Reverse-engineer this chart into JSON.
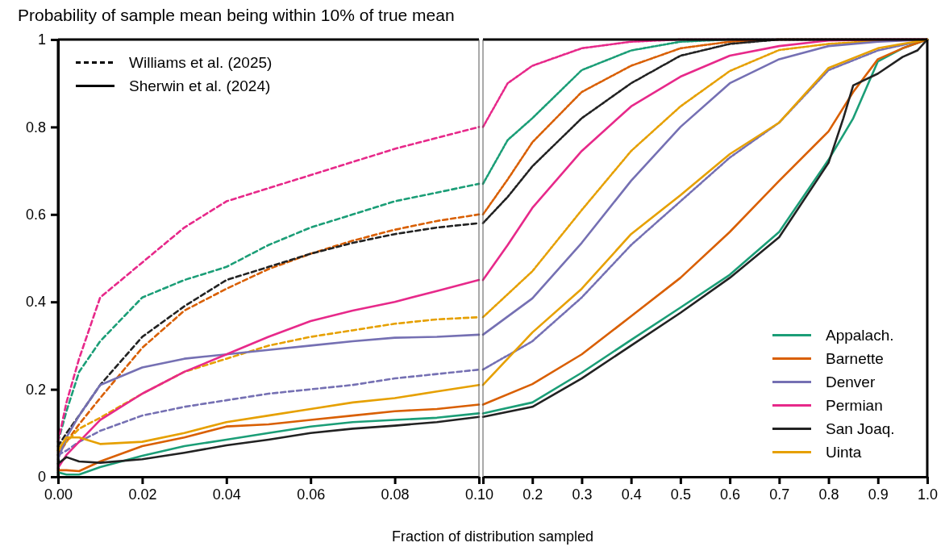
{
  "chart_data": [
    {
      "type": "line",
      "title": "Probability of sample mean being within 10% of true mean",
      "xlabel": "Fraction of distribution sampled",
      "legend": "top left",
      "annotations": [
        "Williams et al. (2025)",
        "Sherwin et al. (2024)"
      ],
      "x": [
        0,
        0.002,
        0.005,
        0.01,
        0.02,
        0.03,
        0.04,
        0.05,
        0.06,
        0.07,
        0.08,
        0.09,
        0.1
      ],
      "xlim": [
        0,
        0.1
      ],
      "xticks": [
        {
          "value": 0,
          "label": "0.00"
        },
        {
          "value": 0.02,
          "label": "0.02"
        },
        {
          "value": 0.04,
          "label": "0.04"
        },
        {
          "value": 0.06,
          "label": "0.06"
        },
        {
          "value": 0.08,
          "label": "0.08"
        },
        {
          "value": 0.1,
          "label": "0.10"
        }
      ],
      "ylim": [
        0,
        1
      ],
      "yticks": [
        0,
        0.2,
        0.4,
        0.6,
        0.8,
        1
      ],
      "series": [
        {
          "color": "#1b9e77",
          "line_style": "dashed",
          "values": [
            0.08,
            0.15,
            0.24,
            0.31,
            0.41,
            0.45,
            0.48,
            0.53,
            0.57,
            0.6,
            0.63,
            0.65,
            0.67
          ]
        },
        {
          "color": "#d95f02",
          "line_style": "dashed",
          "values": [
            0.05,
            0.08,
            0.12,
            0.18,
            0.295,
            0.38,
            0.43,
            0.475,
            0.51,
            0.54,
            0.565,
            0.585,
            0.6
          ]
        },
        {
          "color": "#7570b3",
          "line_style": "dashed",
          "values": [
            0.05,
            0.06,
            0.08,
            0.105,
            0.14,
            0.16,
            0.175,
            0.19,
            0.2,
            0.21,
            0.225,
            0.235,
            0.245
          ]
        },
        {
          "color": "#e7298a",
          "line_style": "dashed",
          "values": [
            0.08,
            0.17,
            0.27,
            0.41,
            0.49,
            0.57,
            0.63,
            0.66,
            0.69,
            0.72,
            0.75,
            0.775,
            0.8
          ]
        },
        {
          "color": "#222222",
          "line_style": "dashed",
          "values": [
            0.07,
            0.1,
            0.14,
            0.21,
            0.32,
            0.39,
            0.45,
            0.48,
            0.51,
            0.535,
            0.555,
            0.57,
            0.58
          ]
        },
        {
          "color": "#e6a000",
          "line_style": "dashed",
          "values": [
            0.06,
            0.08,
            0.11,
            0.135,
            0.19,
            0.24,
            0.27,
            0.3,
            0.32,
            0.335,
            0.35,
            0.36,
            0.365
          ]
        },
        {
          "color": "#1b9e77",
          "line_style": "solid",
          "values": [
            0.01,
            0.005,
            0.005,
            0.022,
            0.048,
            0.07,
            0.085,
            0.1,
            0.115,
            0.125,
            0.13,
            0.135,
            0.145
          ]
        },
        {
          "color": "#d95f02",
          "line_style": "solid",
          "values": [
            0.015,
            0.015,
            0.013,
            0.035,
            0.07,
            0.09,
            0.115,
            0.12,
            0.13,
            0.14,
            0.15,
            0.155,
            0.165
          ]
        },
        {
          "color": "#7570b3",
          "line_style": "solid",
          "values": [
            0.04,
            0.09,
            0.14,
            0.21,
            0.25,
            0.27,
            0.28,
            0.29,
            0.3,
            0.31,
            0.318,
            0.32,
            0.325
          ]
        },
        {
          "color": "#e7298a",
          "line_style": "solid",
          "values": [
            0.02,
            0.05,
            0.08,
            0.13,
            0.19,
            0.24,
            0.28,
            0.32,
            0.356,
            0.38,
            0.4,
            0.425,
            0.45
          ]
        },
        {
          "color": "#222222",
          "line_style": "solid",
          "values": [
            0.03,
            0.045,
            0.035,
            0.032,
            0.04,
            0.055,
            0.072,
            0.085,
            0.1,
            0.11,
            0.117,
            0.125,
            0.137
          ]
        },
        {
          "color": "#e6a000",
          "line_style": "solid",
          "values": [
            0.06,
            0.09,
            0.09,
            0.075,
            0.08,
            0.1,
            0.125,
            0.14,
            0.155,
            0.17,
            0.18,
            0.195,
            0.21
          ]
        }
      ]
    },
    {
      "type": "line",
      "legend": "bottom right",
      "tick_labels": "x",
      "xlim": [
        0.1,
        1
      ],
      "xticks": [
        {
          "value": 0.1,
          "label": null
        },
        0.2,
        0.3,
        0.4,
        0.5,
        0.6,
        0.7,
        0.8,
        0.9,
        {
          "value": 1,
          "label": "1.0"
        }
      ],
      "ylim": [
        0,
        1
      ],
      "yticks": [
        0,
        0.2,
        0.4,
        0.6,
        0.8,
        1
      ],
      "series": [
        {
          "color": "#1b9e77",
          "line_style": "dashed",
          "x": [
            0.1,
            0.15,
            0.2,
            0.3,
            0.4,
            0.5,
            0.6,
            1
          ],
          "values": [
            0.67,
            0.77,
            0.82,
            0.93,
            0.975,
            0.995,
            1,
            1
          ]
        },
        {
          "color": "#d95f02",
          "line_style": "dashed",
          "x": [
            0.1,
            0.15,
            0.2,
            0.3,
            0.4,
            0.5,
            0.6,
            0.7,
            1
          ],
          "values": [
            0.6,
            0.68,
            0.765,
            0.88,
            0.94,
            0.98,
            0.995,
            1,
            1
          ]
        },
        {
          "color": "#7570b3",
          "line_style": "dashed",
          "x": [
            0.1,
            0.2,
            0.3,
            0.4,
            0.5,
            0.6,
            0.7,
            0.8,
            0.9,
            1
          ],
          "values": [
            0.245,
            0.31,
            0.41,
            0.53,
            0.63,
            0.73,
            0.81,
            0.93,
            0.975,
            1
          ]
        },
        {
          "color": "#e7298a",
          "line_style": "dashed",
          "x": [
            0.1,
            0.15,
            0.2,
            0.3,
            0.4,
            0.5,
            1
          ],
          "values": [
            0.8,
            0.9,
            0.94,
            0.98,
            0.995,
            1,
            1
          ]
        },
        {
          "color": "#222222",
          "line_style": "dashed",
          "x": [
            0.1,
            0.15,
            0.2,
            0.3,
            0.4,
            0.5,
            0.6,
            0.7,
            1
          ],
          "values": [
            0.58,
            0.64,
            0.71,
            0.82,
            0.9,
            0.963,
            0.99,
            1,
            1
          ]
        },
        {
          "color": "#e6a000",
          "line_style": "dashed",
          "x": [
            0.1,
            0.2,
            0.3,
            0.4,
            0.5,
            0.6,
            0.7,
            0.8,
            0.9,
            1
          ],
          "values": [
            0.365,
            0.47,
            0.61,
            0.745,
            0.847,
            0.928,
            0.976,
            0.99,
            0.997,
            1
          ]
        },
        {
          "name": "Appalach.",
          "color": "#1b9e77",
          "line_style": "solid",
          "x": [
            0.1,
            0.2,
            0.3,
            0.4,
            0.5,
            0.6,
            0.7,
            0.8,
            0.85,
            0.9,
            0.95,
            1
          ],
          "values": [
            0.145,
            0.17,
            0.238,
            0.313,
            0.387,
            0.462,
            0.56,
            0.725,
            0.82,
            0.95,
            0.98,
            1
          ]
        },
        {
          "name": "Barnette",
          "color": "#d95f02",
          "line_style": "solid",
          "x": [
            0.1,
            0.2,
            0.3,
            0.4,
            0.5,
            0.6,
            0.7,
            0.8,
            0.85,
            0.9,
            0.95,
            1
          ],
          "values": [
            0.165,
            0.212,
            0.28,
            0.367,
            0.455,
            0.56,
            0.677,
            0.79,
            0.88,
            0.955,
            0.98,
            1
          ]
        },
        {
          "name": "Denver",
          "color": "#7570b3",
          "line_style": "solid",
          "x": [
            0.1,
            0.2,
            0.3,
            0.4,
            0.5,
            0.6,
            0.7,
            0.8,
            0.9,
            1
          ],
          "values": [
            0.325,
            0.408,
            0.535,
            0.677,
            0.8,
            0.9,
            0.955,
            0.985,
            0.995,
            1
          ]
        },
        {
          "name": "Permian",
          "color": "#e7298a",
          "line_style": "solid",
          "x": [
            0.1,
            0.15,
            0.2,
            0.3,
            0.4,
            0.5,
            0.6,
            0.7,
            0.8,
            0.9,
            1
          ],
          "values": [
            0.45,
            0.53,
            0.615,
            0.745,
            0.847,
            0.915,
            0.963,
            0.985,
            0.998,
            1,
            1
          ]
        },
        {
          "name": "San Joaq.",
          "color": "#222222",
          "line_style": "solid",
          "x": [
            0.1,
            0.2,
            0.3,
            0.4,
            0.5,
            0.6,
            0.7,
            0.8,
            0.83,
            0.85,
            0.9,
            0.95,
            0.98,
            1
          ],
          "values": [
            0.137,
            0.16,
            0.225,
            0.3,
            0.375,
            0.455,
            0.548,
            0.718,
            0.82,
            0.895,
            0.922,
            0.96,
            0.975,
            1
          ]
        },
        {
          "name": "Uinta",
          "color": "#e6a000",
          "line_style": "solid",
          "x": [
            0.1,
            0.2,
            0.3,
            0.4,
            0.5,
            0.6,
            0.7,
            0.8,
            0.9,
            1
          ],
          "values": [
            0.21,
            0.33,
            0.43,
            0.555,
            0.644,
            0.738,
            0.81,
            0.935,
            0.98,
            1
          ]
        }
      ]
    }
  ]
}
